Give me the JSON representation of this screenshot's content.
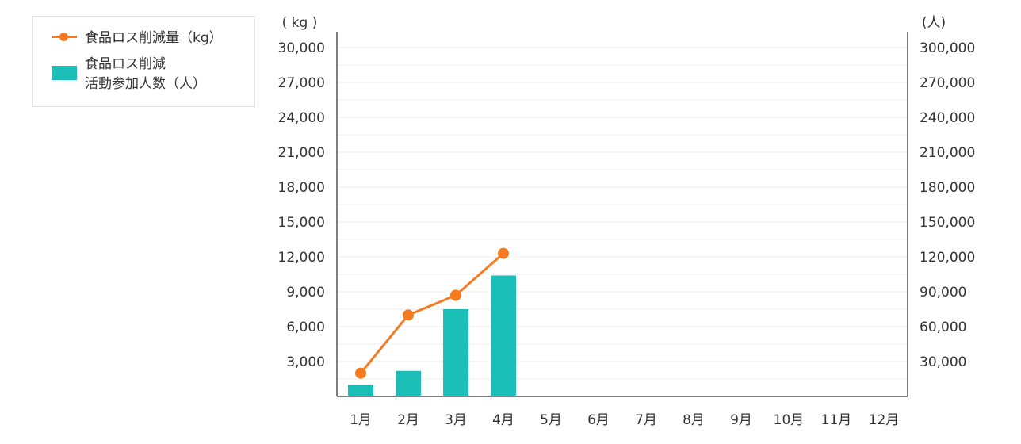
{
  "chart_data": {
    "type": "bar",
    "categories": [
      "1月",
      "2月",
      "3月",
      "4月",
      "5月",
      "6月",
      "7月",
      "8月",
      "9月",
      "10月",
      "11月",
      "12月"
    ],
    "series": [
      {
        "name": "食品ロス削減量（kg）",
        "type": "line",
        "axis": "left",
        "color": "#f47b20",
        "values": [
          2000,
          7000,
          8700,
          12300,
          null,
          null,
          null,
          null,
          null,
          null,
          null,
          null
        ]
      },
      {
        "name": "食品ロス削減\n活動参加人数（人）",
        "type": "bar",
        "axis": "right",
        "color": "#1bbfb7",
        "values": [
          10000,
          22000,
          75000,
          104000,
          null,
          null,
          null,
          null,
          null,
          null,
          null,
          null
        ]
      }
    ],
    "left_axis": {
      "unit": "( kg )",
      "ylim": [
        0,
        30000
      ],
      "ticks": [
        "3,000",
        "6,000",
        "9,000",
        "12,000",
        "15,000",
        "18,000",
        "21,000",
        "24,000",
        "27,000",
        "30,000"
      ]
    },
    "right_axis": {
      "unit": "(人)",
      "ylim": [
        0,
        300000
      ],
      "ticks": [
        "30,000",
        "60,000",
        "90,000",
        "120,000",
        "150,000",
        "180,000",
        "210,000",
        "240,000",
        "270,000",
        "300,000"
      ]
    },
    "grid": true,
    "legend_position": "top-left"
  }
}
